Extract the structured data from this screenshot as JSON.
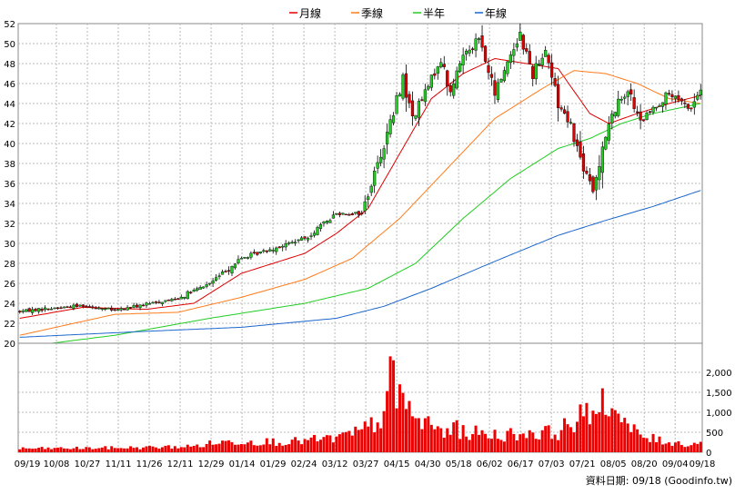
{
  "legend": [
    {
      "label": "月線",
      "color": "#dd0000"
    },
    {
      "label": "季線",
      "color": "#ff7a1a"
    },
    {
      "label": "半年",
      "color": "#22cc22"
    },
    {
      "label": "年線",
      "color": "#1a66cc"
    }
  ],
  "footer": "資料日期: 09/18  (Goodinfo.tw)",
  "chart_data": [
    {
      "type": "candlestick",
      "ylim": [
        20,
        52
      ],
      "y_ticks": [
        20,
        22,
        24,
        26,
        28,
        30,
        32,
        34,
        36,
        38,
        40,
        42,
        44,
        46,
        48,
        50,
        52
      ],
      "x_tick_labels": [
        "09/19",
        "10/08",
        "10/27",
        "11/11",
        "11/26",
        "12/11",
        "12/29",
        "01/14",
        "01/29",
        "02/24",
        "03/12",
        "03/27",
        "04/15",
        "04/30",
        "05/18",
        "06/02",
        "06/17",
        "07/03",
        "07/21",
        "08/05",
        "08/20",
        "09/04",
        "09/18"
      ],
      "grid": true,
      "up_color": "#22cc22",
      "down_color": "#dd0000",
      "price_anchors": [
        [
          0,
          23.2
        ],
        [
          10,
          23.5
        ],
        [
          20,
          23.8
        ],
        [
          30,
          23.3
        ],
        [
          40,
          23.9
        ],
        [
          50,
          24.5
        ],
        [
          60,
          26.0
        ],
        [
          70,
          28.5
        ],
        [
          80,
          29.5
        ],
        [
          90,
          30.5
        ],
        [
          100,
          33.0
        ],
        [
          108,
          33.0
        ],
        [
          113,
          38.0
        ],
        [
          118,
          43.0
        ],
        [
          121,
          46.5
        ],
        [
          124,
          42.5
        ],
        [
          128,
          45.0
        ],
        [
          133,
          48.5
        ],
        [
          136,
          45.0
        ],
        [
          140,
          49.0
        ],
        [
          145,
          50.5
        ],
        [
          150,
          45.0
        ],
        [
          155,
          49.0
        ],
        [
          158,
          51.0
        ],
        [
          162,
          47.0
        ],
        [
          166,
          49.5
        ],
        [
          170,
          44.0
        ],
        [
          174,
          42.0
        ],
        [
          177,
          38.5
        ],
        [
          181,
          35.0
        ],
        [
          184,
          40.0
        ],
        [
          188,
          43.5
        ],
        [
          192,
          45.5
        ],
        [
          196,
          42.0
        ],
        [
          200,
          43.5
        ],
        [
          205,
          45.0
        ],
        [
          209,
          44.0
        ],
        [
          212,
          43.5
        ],
        [
          215,
          45.5
        ]
      ],
      "moving_averages": [
        {
          "name": "月線",
          "color": "#dd0000",
          "anchors": [
            [
              0,
              22.5
            ],
            [
              20,
              23.6
            ],
            [
              40,
              23.4
            ],
            [
              55,
              24.0
            ],
            [
              70,
              27.0
            ],
            [
              90,
              29.0
            ],
            [
              100,
              31.0
            ],
            [
              110,
              33.5
            ],
            [
              120,
              39.0
            ],
            [
              130,
              44.5
            ],
            [
              140,
              47.0
            ],
            [
              150,
              48.5
            ],
            [
              160,
              48.0
            ],
            [
              170,
              47.5
            ],
            [
              180,
              43.0
            ],
            [
              186,
              42.0
            ],
            [
              195,
              43.0
            ],
            [
              205,
              44.0
            ],
            [
              215,
              44.8
            ]
          ]
        },
        {
          "name": "季線",
          "color": "#ff7a1a",
          "anchors": [
            [
              0,
              20.8
            ],
            [
              30,
              22.9
            ],
            [
              50,
              23.1
            ],
            [
              70,
              24.6
            ],
            [
              90,
              26.4
            ],
            [
              105,
              28.5
            ],
            [
              120,
              32.5
            ],
            [
              135,
              37.5
            ],
            [
              150,
              42.5
            ],
            [
              165,
              45.5
            ],
            [
              175,
              47.3
            ],
            [
              185,
              47.0
            ],
            [
              195,
              46.0
            ],
            [
              205,
              44.5
            ],
            [
              215,
              44.0
            ]
          ]
        },
        {
          "name": "半年",
          "color": "#22cc22",
          "anchors": [
            [
              0,
              19.6
            ],
            [
              30,
              20.8
            ],
            [
              60,
              22.5
            ],
            [
              90,
              24.0
            ],
            [
              110,
              25.5
            ],
            [
              125,
              28.0
            ],
            [
              140,
              32.5
            ],
            [
              155,
              36.5
            ],
            [
              170,
              39.5
            ],
            [
              180,
              40.5
            ],
            [
              190,
              42.0
            ],
            [
              200,
              43.0
            ],
            [
              215,
              44.0
            ]
          ]
        },
        {
          "name": "年線",
          "color": "#1a66cc",
          "anchors": [
            [
              0,
              20.6
            ],
            [
              40,
              21.2
            ],
            [
              70,
              21.6
            ],
            [
              100,
              22.5
            ],
            [
              115,
              23.7
            ],
            [
              130,
              25.5
            ],
            [
              150,
              28.2
            ],
            [
              170,
              30.8
            ],
            [
              185,
              32.3
            ],
            [
              200,
              33.7
            ],
            [
              215,
              35.3
            ]
          ]
        }
      ]
    },
    {
      "type": "bar",
      "series_color": "#ee0000",
      "ylim": [
        0,
        2500
      ],
      "y_ticks": [
        0,
        500,
        1000,
        1500,
        2000
      ],
      "y_tick_labels": [
        "0",
        "500",
        "1,000",
        "1,500",
        "2,000"
      ],
      "volume_anchors": [
        [
          0,
          100
        ],
        [
          20,
          110
        ],
        [
          40,
          130
        ],
        [
          55,
          160
        ],
        [
          62,
          260
        ],
        [
          70,
          300
        ],
        [
          85,
          280
        ],
        [
          100,
          380
        ],
        [
          108,
          560
        ],
        [
          113,
          850
        ],
        [
          116,
          1200
        ],
        [
          117,
          2400
        ],
        [
          118,
          1900
        ],
        [
          120,
          1800
        ],
        [
          124,
          900
        ],
        [
          130,
          650
        ],
        [
          140,
          550
        ],
        [
          150,
          470
        ],
        [
          160,
          500
        ],
        [
          170,
          550
        ],
        [
          175,
          850
        ],
        [
          180,
          1050
        ],
        [
          183,
          1000
        ],
        [
          186,
          1600
        ],
        [
          188,
          1100
        ],
        [
          192,
          650
        ],
        [
          198,
          380
        ],
        [
          205,
          280
        ],
        [
          212,
          200
        ],
        [
          215,
          300
        ]
      ],
      "volume_spikes": [
        [
          117,
          2400
        ],
        [
          120,
          1700
        ],
        [
          119,
          1100
        ],
        [
          124,
          900
        ],
        [
          129,
          900
        ],
        [
          138,
          800
        ],
        [
          178,
          900
        ],
        [
          183,
          1000
        ],
        [
          184,
          1600
        ],
        [
          187,
          1100
        ],
        [
          186,
          900
        ],
        [
          180,
          700
        ],
        [
          135,
          600
        ],
        [
          146,
          550
        ],
        [
          161,
          550
        ]
      ]
    }
  ]
}
